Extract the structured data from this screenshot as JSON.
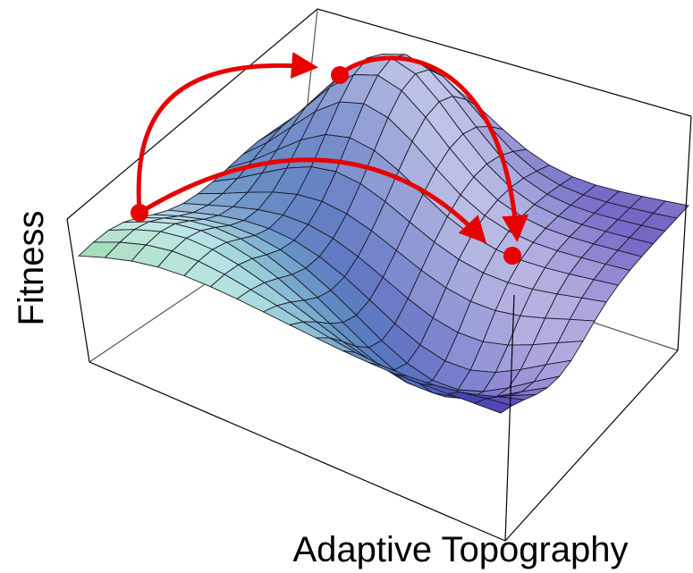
{
  "axis_labels": {
    "y": "Fitness",
    "x": "Adaptive Topography"
  }
}
